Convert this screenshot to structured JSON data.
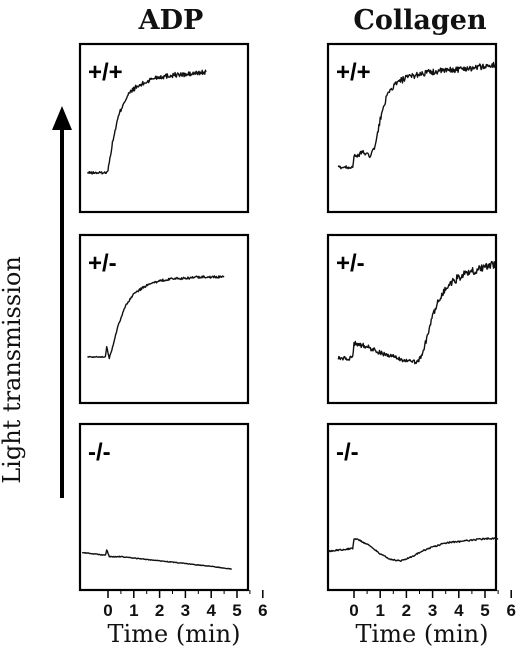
{
  "figure": {
    "columns": [
      "ADP",
      "Collagen"
    ],
    "y_axis_label": "Light transmission",
    "x_axis_label": "Time (min)",
    "x_ticks": [
      "0",
      "1",
      "2",
      "3",
      "4",
      "5",
      "6"
    ],
    "genotypes": [
      "+/+",
      "+/-",
      "-/-"
    ]
  },
  "chart_data": [
    {
      "type": "line",
      "title": "ADP",
      "row_label": "+/+",
      "xlabel": "Time (min)",
      "ylabel": "Light transmission",
      "xlim": [
        0,
        6
      ],
      "ylim": [
        0,
        1
      ],
      "noise": 0.018,
      "x": [
        -0.8,
        -0.1,
        0.0,
        0.2,
        0.4,
        0.6,
        0.8,
        1.0,
        1.4,
        1.8,
        2.2,
        2.6,
        3.0,
        3.4,
        3.8
      ],
      "y": [
        0.18,
        0.18,
        0.2,
        0.42,
        0.58,
        0.68,
        0.74,
        0.78,
        0.82,
        0.86,
        0.87,
        0.88,
        0.88,
        0.89,
        0.9
      ]
    },
    {
      "type": "line",
      "title": "Collagen",
      "row_label": "+/+",
      "xlabel": "Time (min)",
      "ylabel": "Light transmission",
      "xlim": [
        0,
        6
      ],
      "ylim": [
        0,
        1
      ],
      "noise": 0.022,
      "x": [
        -0.6,
        -0.05,
        0.0,
        0.1,
        0.3,
        0.6,
        0.8,
        1.0,
        1.2,
        1.5,
        1.8,
        2.2,
        2.6,
        3.0,
        3.5,
        4.0,
        4.5,
        5.0,
        5.4
      ],
      "y": [
        0.22,
        0.22,
        0.3,
        0.29,
        0.33,
        0.3,
        0.36,
        0.56,
        0.7,
        0.8,
        0.84,
        0.87,
        0.89,
        0.9,
        0.91,
        0.92,
        0.93,
        0.94,
        0.95
      ]
    },
    {
      "type": "line",
      "title": "ADP",
      "row_label": "+/-",
      "xlabel": "Time (min)",
      "ylabel": "Light transmission",
      "xlim": [
        0,
        6
      ],
      "ylim": [
        0,
        1
      ],
      "noise": 0.008,
      "x": [
        -0.8,
        -0.1,
        -0.05,
        0.05,
        0.15,
        0.4,
        0.7,
        1.0,
        1.4,
        1.8,
        2.2,
        2.6,
        3.0,
        3.5,
        4.0,
        4.5
      ],
      "y": [
        0.23,
        0.23,
        0.3,
        0.22,
        0.28,
        0.46,
        0.6,
        0.68,
        0.73,
        0.76,
        0.78,
        0.79,
        0.79,
        0.8,
        0.8,
        0.8
      ]
    },
    {
      "type": "line",
      "title": "Collagen",
      "row_label": "+/-",
      "xlabel": "Time (min)",
      "ylabel": "Light transmission",
      "xlim": [
        0,
        6
      ],
      "ylim": [
        0,
        1
      ],
      "noise": 0.028,
      "x": [
        -0.6,
        -0.05,
        0.0,
        0.5,
        1.0,
        1.5,
        2.0,
        2.4,
        2.6,
        2.8,
        3.0,
        3.3,
        3.6,
        4.0,
        4.5,
        5.0,
        5.4
      ],
      "y": [
        0.22,
        0.22,
        0.33,
        0.3,
        0.26,
        0.23,
        0.2,
        0.19,
        0.24,
        0.38,
        0.52,
        0.66,
        0.74,
        0.8,
        0.84,
        0.87,
        0.89
      ]
    },
    {
      "type": "line",
      "title": "ADP",
      "row_label": "-/-",
      "xlabel": "Time (min)",
      "ylabel": "Light transmission",
      "xlim": [
        0,
        6
      ],
      "ylim": [
        0,
        1
      ],
      "noise": 0.006,
      "x": [
        -1.0,
        -0.1,
        -0.05,
        0.05,
        0.5,
        1.0,
        2.0,
        3.0,
        4.0,
        4.8
      ],
      "y": [
        0.17,
        0.15,
        0.19,
        0.14,
        0.14,
        0.13,
        0.11,
        0.09,
        0.07,
        0.05
      ]
    },
    {
      "type": "line",
      "title": "Collagen",
      "row_label": "-/-",
      "xlabel": "Time (min)",
      "ylabel": "Light transmission",
      "xlim": [
        0,
        6
      ],
      "ylim": [
        0,
        1
      ],
      "noise": 0.01,
      "x": [
        -1.0,
        -0.05,
        0.0,
        0.2,
        0.6,
        1.0,
        1.4,
        1.8,
        2.2,
        2.6,
        3.0,
        3.5,
        4.0,
        4.5,
        5.0,
        5.5
      ],
      "y": [
        0.18,
        0.2,
        0.27,
        0.26,
        0.22,
        0.16,
        0.12,
        0.11,
        0.14,
        0.18,
        0.21,
        0.24,
        0.25,
        0.26,
        0.27,
        0.27
      ]
    }
  ]
}
